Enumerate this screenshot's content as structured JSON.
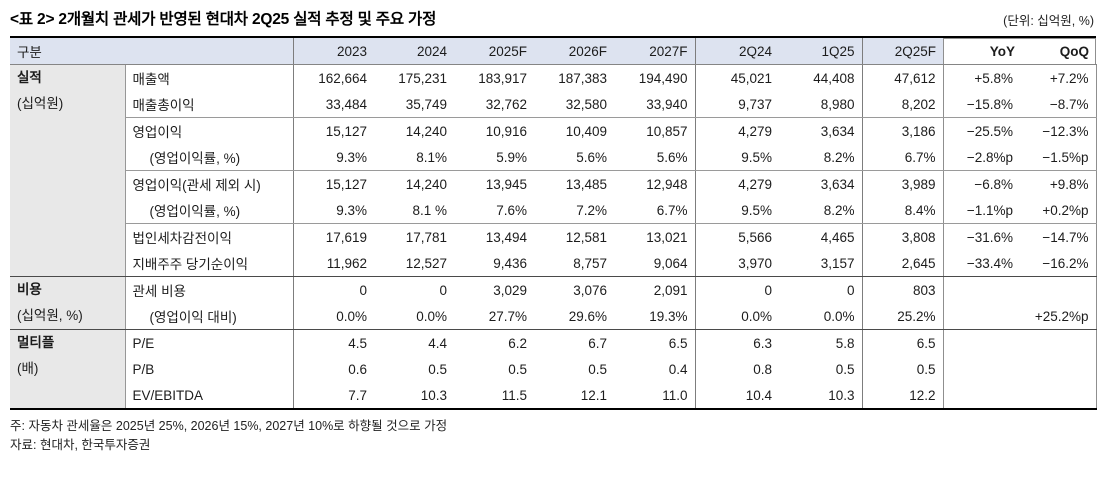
{
  "title": "<표 2> 2개월치 관세가 반영된 현대차 2Q25 실적 추정 및 주요 가정",
  "unit_note": "(단위: 십억원, %)",
  "table": {
    "corner_header": "구분",
    "period_headers": [
      "2023",
      "2024",
      "2025F",
      "2026F",
      "2027F",
      "2Q24",
      "1Q25",
      "2Q25F"
    ],
    "change_headers": [
      "YoY",
      "QoQ"
    ],
    "groups": [
      {
        "name": "실적",
        "unit": "(십억원)",
        "row_start": 0,
        "row_span": 8,
        "id": "group-header-results"
      },
      {
        "name": "비용",
        "unit": "(십억원, %)",
        "row_start": 8,
        "row_span": 2,
        "id": "group-header-costs"
      },
      {
        "name": "멀티플",
        "unit": "(배)",
        "row_start": 10,
        "row_span": 3,
        "id": "group-header-multiples"
      }
    ],
    "rows": [
      {
        "label": "매출액",
        "indent": false,
        "values": [
          "162,664",
          "175,231",
          "183,917",
          "187,383",
          "194,490",
          "45,021",
          "44,408",
          "47,612",
          "+5.8%",
          "+7.2%"
        ]
      },
      {
        "label": "매출총이익",
        "indent": false,
        "values": [
          "33,484",
          "35,749",
          "32,762",
          "32,580",
          "33,940",
          "9,737",
          "8,980",
          "8,202",
          "−15.8%",
          "−8.7%"
        ]
      },
      {
        "label": "영업이익",
        "indent": false,
        "values": [
          "15,127",
          "14,240",
          "10,916",
          "10,409",
          "10,857",
          "4,279",
          "3,634",
          "3,186",
          "−25.5%",
          "−12.3%"
        ]
      },
      {
        "label": "(영업이익률, %)",
        "indent": true,
        "values": [
          "9.3%",
          "8.1%",
          "5.9%",
          "5.6%",
          "5.6%",
          "9.5%",
          "8.2%",
          "6.7%",
          "−2.8%p",
          "−1.5%p"
        ]
      },
      {
        "label": "영업이익(관세 제외 시)",
        "indent": false,
        "values": [
          "15,127",
          "14,240",
          "13,945",
          "13,485",
          "12,948",
          "4,279",
          "3,634",
          "3,989",
          "−6.8%",
          "+9.8%"
        ]
      },
      {
        "label": "(영업이익률, %)",
        "indent": true,
        "values": [
          "9.3%",
          "8.1 %",
          "7.6%",
          "7.2%",
          "6.7%",
          "9.5%",
          "8.2%",
          "8.4%",
          "−1.1%p",
          "+0.2%p"
        ]
      },
      {
        "label": "법인세차감전이익",
        "indent": false,
        "values": [
          "17,619",
          "17,781",
          "13,494",
          "12,581",
          "13,021",
          "5,566",
          "4,465",
          "3,808",
          "−31.6%",
          "−14.7%"
        ]
      },
      {
        "label": "지배주주 당기순이익",
        "indent": false,
        "values": [
          "11,962",
          "12,527",
          "9,436",
          "8,757",
          "9,064",
          "3,970",
          "3,157",
          "2,645",
          "−33.4%",
          "−16.2%"
        ]
      },
      {
        "label": "관세 비용",
        "indent": false,
        "values": [
          "0",
          "0",
          "3,029",
          "3,076",
          "2,091",
          "0",
          "0",
          "803",
          "",
          ""
        ]
      },
      {
        "label": "(영업이익 대비)",
        "indent": true,
        "values": [
          "0.0%",
          "0.0%",
          "27.7%",
          "29.6%",
          "19.3%",
          "0.0%",
          "0.0%",
          "25.2%",
          "",
          "+25.2%p"
        ]
      },
      {
        "label": "P/E",
        "indent": false,
        "values": [
          "4.5",
          "4.4",
          "6.2",
          "6.7",
          "6.5",
          "6.3",
          "5.8",
          "6.5",
          "",
          ""
        ]
      },
      {
        "label": "P/B",
        "indent": false,
        "values": [
          "0.6",
          "0.5",
          "0.5",
          "0.5",
          "0.4",
          "0.8",
          "0.5",
          "0.5",
          "",
          ""
        ]
      },
      {
        "label": "EV/EBITDA",
        "indent": false,
        "values": [
          "7.7",
          "10.3",
          "11.5",
          "12.1",
          "11.0",
          "10.4",
          "10.3",
          "12.2",
          "",
          ""
        ]
      }
    ],
    "separator_after_rows": [
      1,
      3,
      5
    ],
    "section_after_rows": [
      7,
      9
    ]
  },
  "footnotes": [
    "주: 자동차 관세율은 2025년 25%, 2026년 15%, 2027년 10%로 하향될 것으로 가정",
    "자료: 현대차, 한국투자증권"
  ],
  "colors": {
    "header_bg": "#dde3f0",
    "group_bg": "#e8e8e8",
    "frame_border": "#000000",
    "inner_line": "#9a9a9a"
  }
}
